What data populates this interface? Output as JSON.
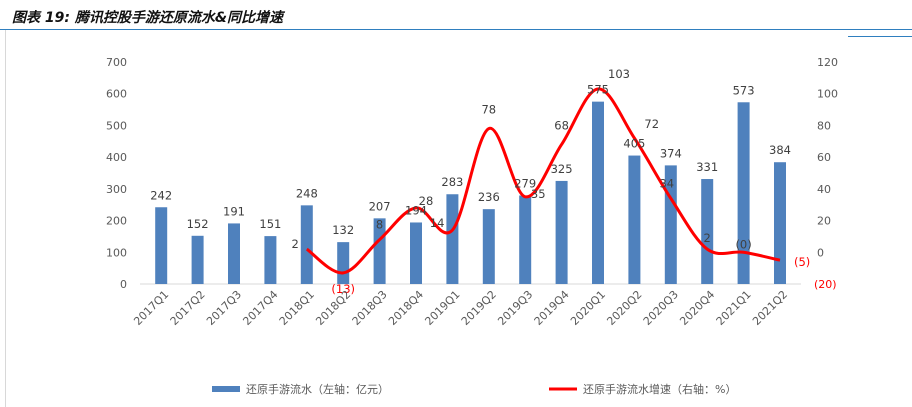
{
  "figure": {
    "title": "图表 19: 腾讯控股手游还原流水&同比增速"
  },
  "colors": {
    "bar": "#4f81bd",
    "line": "#ff0000",
    "negative_label": "#ff0000",
    "title_rule": "#2f7fbf",
    "axis_text": "#595959"
  },
  "chart_data": {
    "type": "bar",
    "categories": [
      "2017Q1",
      "2017Q2",
      "2017Q3",
      "2017Q4",
      "2018Q1",
      "2018Q2",
      "2018Q3",
      "2018Q4",
      "2019Q1",
      "2019Q2",
      "2019Q3",
      "2019Q4",
      "2020Q1",
      "2020Q2",
      "2020Q3",
      "2020Q4",
      "2021Q1",
      "2021Q2"
    ],
    "series": [
      {
        "name": "还原手游流水（左轴：亿元）",
        "type": "bar",
        "axis": "left",
        "values": [
          242,
          152,
          191,
          151,
          248,
          132,
          207,
          194,
          283,
          236,
          279,
          325,
          575,
          405,
          374,
          331,
          573,
          384
        ],
        "labels": [
          "242",
          "152",
          "191",
          "151",
          "248",
          "132",
          "207",
          "194",
          "283",
          "236",
          "279",
          "325",
          "575",
          "405",
          "374",
          "331",
          "573",
          "384"
        ]
      },
      {
        "name": "还原手游流水增速（右轴：%）",
        "type": "line",
        "axis": "right",
        "values": [
          null,
          null,
          null,
          null,
          2,
          -13,
          8,
          28,
          14,
          78,
          35,
          68,
          103,
          72,
          34,
          2,
          0,
          -5
        ],
        "labels": [
          "",
          "",
          "",
          "",
          "2",
          "(13)",
          "8",
          "28",
          "14",
          "78",
          "35",
          "68",
          "103",
          "72",
          "34",
          "2",
          "(0)",
          "(5)"
        ]
      }
    ],
    "y_left": {
      "min": 0,
      "max": 700,
      "ticks": [
        "0",
        "100",
        "200",
        "300",
        "400",
        "500",
        "600",
        "700"
      ]
    },
    "y_right": {
      "min": -20,
      "max": 120,
      "ticks": [
        "(20)",
        "0",
        "20",
        "40",
        "60",
        "80",
        "100",
        "120"
      ]
    },
    "legend_position": "bottom",
    "grid": false
  }
}
